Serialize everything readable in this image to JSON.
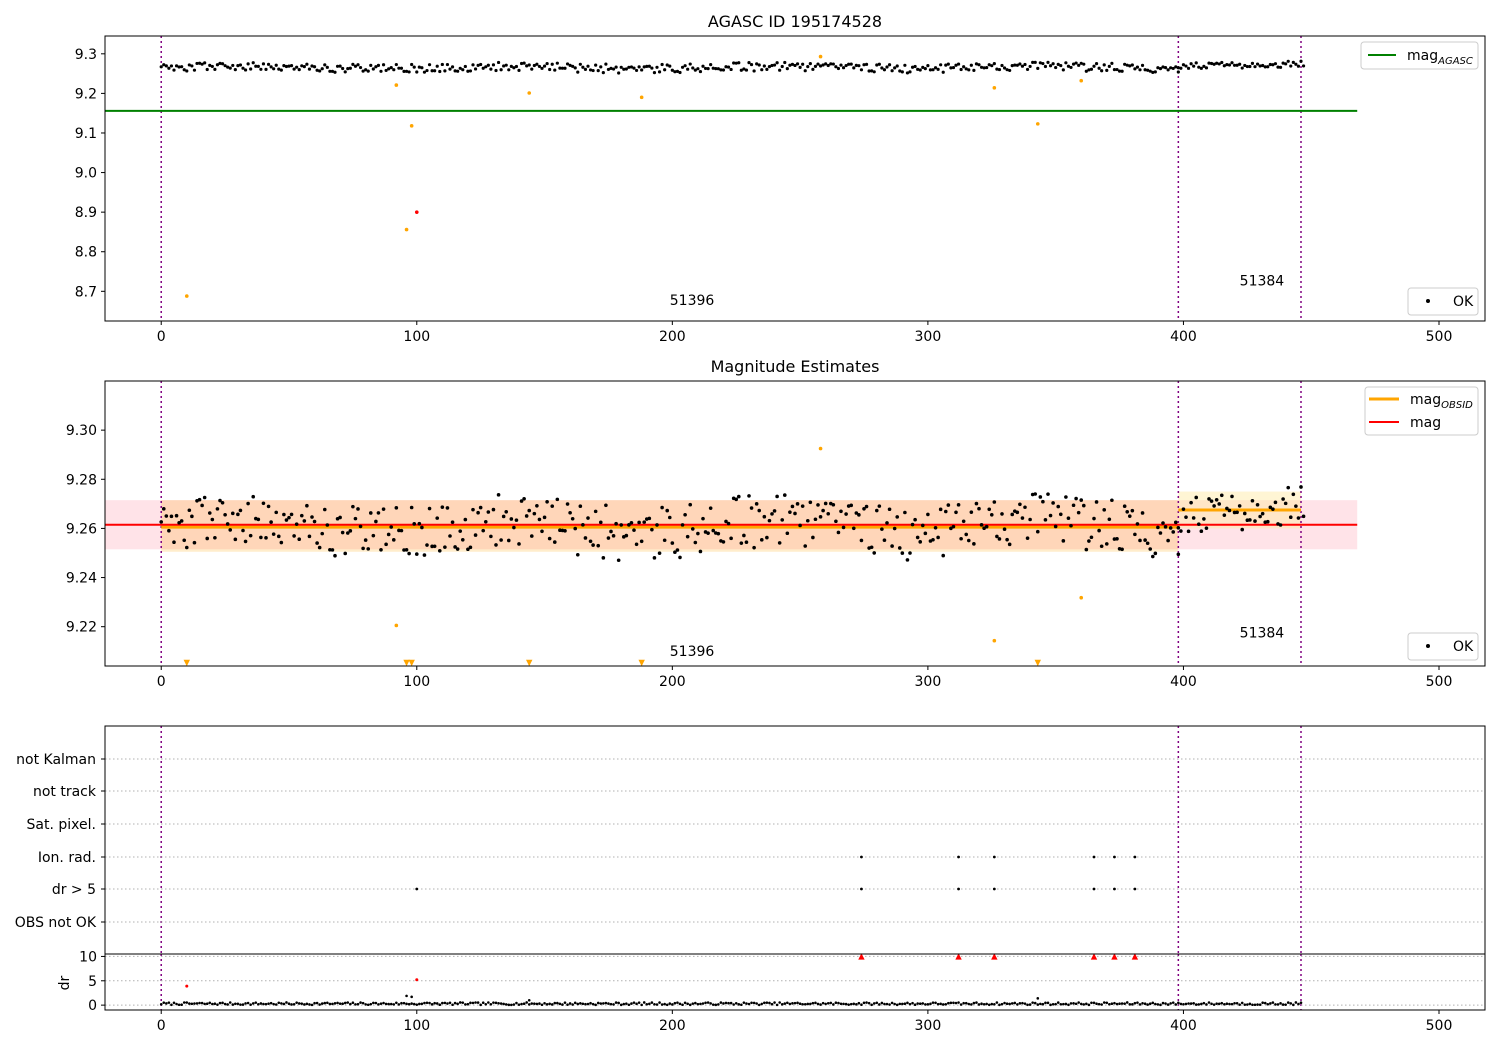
{
  "chart_data": [
    {
      "type": "scatter",
      "title": "AGASC ID 195174528",
      "xlim": [
        -22,
        518
      ],
      "ylim": [
        8.625,
        9.345
      ],
      "xticks": [
        0,
        100,
        200,
        300,
        400,
        500
      ],
      "yticks": [
        8.7,
        8.8,
        8.9,
        9.0,
        9.1,
        9.2,
        9.3
      ],
      "ytick_labels": [
        "8.7",
        "8.8",
        "8.9",
        "9.0",
        "9.1",
        "9.2",
        "9.3"
      ],
      "legend_top": {
        "placement": "top-right",
        "entries": [
          {
            "label": "mag",
            "sub": "AGASC",
            "color": "#008000",
            "kind": "line"
          }
        ]
      },
      "legend_bottom": {
        "placement": "bottom-right",
        "entries": [
          {
            "label": "OK",
            "color": "#000000",
            "kind": "dot"
          }
        ]
      },
      "hlines": [
        {
          "name": "mag_AGASC",
          "y": 9.156,
          "x0": -22,
          "x1": 468,
          "color": "#008000",
          "width": 2
        }
      ],
      "vlines": [
        0,
        398,
        446
      ],
      "annotations": [
        {
          "text": "51396",
          "x": 199,
          "y": 8.665
        },
        {
          "text": "51384",
          "x": 422,
          "y": 8.715
        }
      ],
      "series": [
        {
          "name": "OK",
          "color": "#000000",
          "ok_segments": [
            {
              "x0": 0,
              "x1": 398,
              "mean": 9.261,
              "amp": 0.011
            },
            {
              "x0": 398,
              "x1": 447,
              "mean": 9.268,
              "amp": 0.008
            }
          ]
        },
        {
          "name": "outliers",
          "color": "#ffa500",
          "points": [
            [
              10,
              8.688
            ],
            [
              92,
              9.221
            ],
            [
              96,
              8.856
            ],
            [
              98,
              9.118
            ],
            [
              144,
              9.201
            ],
            [
              188,
              9.19
            ],
            [
              258,
              9.293
            ],
            [
              326,
              9.214
            ],
            [
              343,
              9.123
            ],
            [
              360,
              9.232
            ]
          ]
        },
        {
          "name": "flagged",
          "color": "#ff0000",
          "points": [
            [
              100,
              8.9
            ]
          ]
        }
      ]
    },
    {
      "type": "scatter",
      "title": "Magnitude Estimates",
      "xlim": [
        -22,
        518
      ],
      "ylim": [
        9.204,
        9.32
      ],
      "xticks": [
        0,
        100,
        200,
        300,
        400,
        500
      ],
      "yticks": [
        9.22,
        9.24,
        9.26,
        9.28,
        9.3
      ],
      "ytick_labels": [
        "9.22",
        "9.24",
        "9.26",
        "9.28",
        "9.30"
      ],
      "legend_top": {
        "placement": "top-right",
        "entries": [
          {
            "label": "mag",
            "sub": "OBSID",
            "color": "#ffa500",
            "kind": "line"
          },
          {
            "label": "mag",
            "sub": "",
            "color": "#ff0000",
            "kind": "line"
          }
        ]
      },
      "legend_bottom": {
        "placement": "bottom-right",
        "entries": [
          {
            "label": "OK",
            "color": "#000000",
            "kind": "dot"
          }
        ]
      },
      "bands": [
        {
          "x0": -22,
          "x1": 468,
          "y0": 9.2515,
          "y1": 9.2715,
          "color": "#ffc0cb",
          "opacity": 0.45
        },
        {
          "x0": 0,
          "x1": 398,
          "y0": 9.2505,
          "y1": 9.2715,
          "color": "#ffa500",
          "opacity": 0.2
        },
        {
          "x0": 398,
          "x1": 446,
          "y0": 9.26,
          "y1": 9.275,
          "color": "#ffe9a0",
          "opacity": 0.45
        }
      ],
      "hlines": [
        {
          "name": "mag_OBSID_1",
          "y": 9.2605,
          "x0": 0,
          "x1": 398,
          "color": "#ffa500",
          "width": 3
        },
        {
          "name": "mag_OBSID_2",
          "y": 9.2675,
          "x0": 398,
          "x1": 446,
          "color": "#ffa500",
          "width": 3
        },
        {
          "name": "mag",
          "y": 9.2615,
          "x0": -22,
          "x1": 468,
          "color": "#ff0000",
          "width": 2
        }
      ],
      "vlines": [
        0,
        398,
        446
      ],
      "annotations": [
        {
          "text": "51396",
          "x": 199,
          "y": 9.208
        },
        {
          "text": "51384",
          "x": 422,
          "y": 9.2155
        }
      ],
      "series": [
        {
          "name": "OK",
          "color": "#000000",
          "ok_segments": [
            {
              "x0": 0,
              "x1": 398,
              "mean": 9.2605,
              "amp": 0.011
            },
            {
              "x0": 398,
              "x1": 447,
              "mean": 9.2675,
              "amp": 0.008
            }
          ]
        },
        {
          "name": "outliers",
          "color": "#ffa500",
          "points": [
            [
              92,
              9.2205
            ],
            [
              258,
              9.2925
            ],
            [
              326,
              9.2143
            ],
            [
              360,
              9.2318
            ]
          ]
        },
        {
          "name": "below-range",
          "color": "#ffa500",
          "marker": "triangle-down",
          "points": [
            [
              10,
              9.205
            ],
            [
              96,
              9.205
            ],
            [
              98,
              9.205
            ],
            [
              144,
              9.205
            ],
            [
              188,
              9.205
            ],
            [
              343,
              9.205
            ]
          ]
        }
      ]
    },
    {
      "type": "scatter",
      "title": "",
      "xlim": [
        -22,
        518
      ],
      "categories": [
        "not Kalman",
        "not track",
        "Sat. pixel.",
        "Ion. rad.",
        "dr > 5",
        "OBS not OK"
      ],
      "flag_points": [
        {
          "category": "Ion. rad.",
          "x": [
            274,
            312,
            326,
            365,
            373,
            381
          ]
        },
        {
          "category": "dr > 5",
          "x": [
            100,
            274,
            312,
            326,
            365,
            373,
            381
          ]
        }
      ],
      "vlines": [
        0,
        398,
        446
      ]
    },
    {
      "type": "scatter",
      "ylabel": "dr",
      "xlim": [
        -22,
        518
      ],
      "ylim": [
        -1,
        10.5
      ],
      "xticks": [
        0,
        100,
        200,
        300,
        400,
        500
      ],
      "yticks": [
        0,
        5,
        10
      ],
      "ytick_labels": [
        "0",
        "5",
        "10"
      ],
      "vlines": [
        0,
        398,
        446
      ],
      "series": [
        {
          "name": "dr",
          "color": "#000000",
          "baseline": 0.3,
          "amp": 0.25,
          "x0": 0,
          "x1": 446,
          "extra_points": [
            [
              96,
              1.9
            ],
            [
              98,
              1.7
            ],
            [
              144,
              1.0
            ],
            [
              343,
              1.4
            ]
          ]
        },
        {
          "name": "dr-flagged",
          "color": "#ff0000",
          "points": [
            [
              10,
              3.9
            ],
            [
              100,
              5.2
            ]
          ]
        },
        {
          "name": "dr-clipped",
          "color": "#ff0000",
          "marker": "triangle-up",
          "points": [
            [
              274,
              10
            ],
            [
              312,
              10
            ],
            [
              326,
              10
            ],
            [
              365,
              10
            ],
            [
              373,
              10
            ],
            [
              381,
              10
            ]
          ]
        }
      ]
    }
  ]
}
